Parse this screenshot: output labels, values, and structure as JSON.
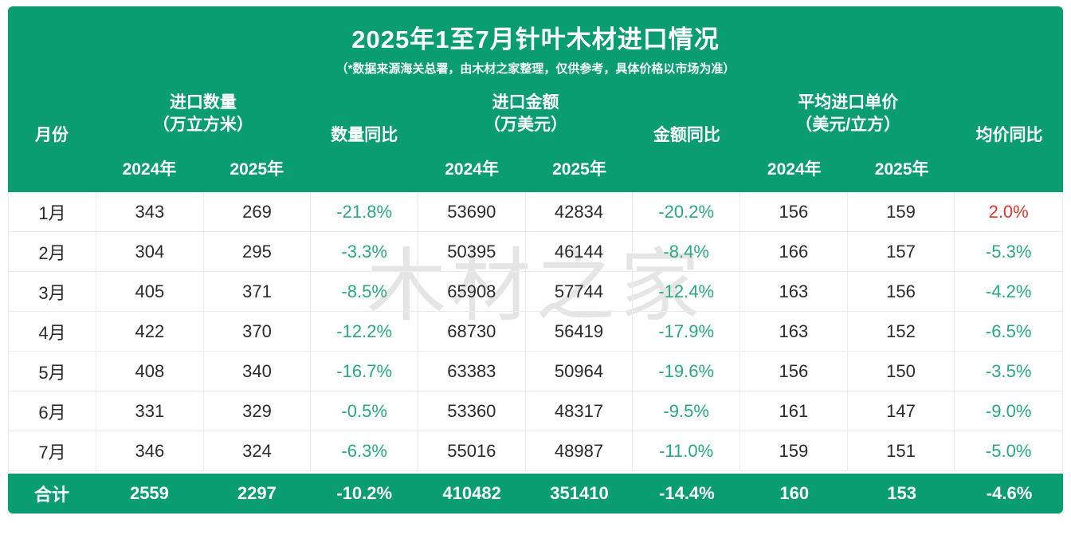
{
  "title": "2025年1至7月针叶木材进口情况",
  "subtitle": "（*数据来源海关总署，由木材之家整理，仅供参考，具体价格以市场为准）",
  "watermark": "木材之家",
  "colors": {
    "brand_green": "#0a9d71",
    "decline_green": "#2aa87c",
    "increase_red": "#d7382f",
    "body_text": "#2b2b2b",
    "grid_line": "#ececec"
  },
  "table": {
    "columns": {
      "month": "月份",
      "qty_group": "进口数量",
      "qty_unit": "（万立方米）",
      "qty_yoy": "数量同比",
      "amt_group": "进口金额",
      "amt_unit": "（万美元）",
      "amt_yoy": "金额同比",
      "price_group": "平均进口单价",
      "price_unit": "（美元/立方）",
      "price_yoy": "均价同比",
      "year_2024": "2024年",
      "year_2025": "2025年"
    },
    "rows": [
      {
        "month": "1月",
        "qty_2024": "343",
        "qty_2025": "269",
        "qty_yoy": "-21.8%",
        "amt_2024": "53690",
        "amt_2025": "42834",
        "amt_yoy": "-20.2%",
        "price_2024": "156",
        "price_2025": "159",
        "price_yoy": "2.0%"
      },
      {
        "month": "2月",
        "qty_2024": "304",
        "qty_2025": "295",
        "qty_yoy": "-3.3%",
        "amt_2024": "50395",
        "amt_2025": "46144",
        "amt_yoy": "-8.4%",
        "price_2024": "166",
        "price_2025": "157",
        "price_yoy": "-5.3%"
      },
      {
        "month": "3月",
        "qty_2024": "405",
        "qty_2025": "371",
        "qty_yoy": "-8.5%",
        "amt_2024": "65908",
        "amt_2025": "57744",
        "amt_yoy": "-12.4%",
        "price_2024": "163",
        "price_2025": "156",
        "price_yoy": "-4.2%"
      },
      {
        "month": "4月",
        "qty_2024": "422",
        "qty_2025": "370",
        "qty_yoy": "-12.2%",
        "amt_2024": "68730",
        "amt_2025": "56419",
        "amt_yoy": "-17.9%",
        "price_2024": "163",
        "price_2025": "152",
        "price_yoy": "-6.5%"
      },
      {
        "month": "5月",
        "qty_2024": "408",
        "qty_2025": "340",
        "qty_yoy": "-16.7%",
        "amt_2024": "63383",
        "amt_2025": "50964",
        "amt_yoy": "-19.6%",
        "price_2024": "156",
        "price_2025": "150",
        "price_yoy": "-3.5%"
      },
      {
        "month": "6月",
        "qty_2024": "331",
        "qty_2025": "329",
        "qty_yoy": "-0.5%",
        "amt_2024": "53360",
        "amt_2025": "48317",
        "amt_yoy": "-9.5%",
        "price_2024": "161",
        "price_2025": "147",
        "price_yoy": "-9.0%"
      },
      {
        "month": "7月",
        "qty_2024": "346",
        "qty_2025": "324",
        "qty_yoy": "-6.3%",
        "amt_2024": "55016",
        "amt_2025": "48987",
        "amt_yoy": "-11.0%",
        "price_2024": "159",
        "price_2025": "151",
        "price_yoy": "-5.0%"
      }
    ],
    "total": {
      "month": "合计",
      "qty_2024": "2559",
      "qty_2025": "2297",
      "qty_yoy": "-10.2%",
      "amt_2024": "410482",
      "amt_2025": "351410",
      "amt_yoy": "-14.4%",
      "price_2024": "160",
      "price_2025": "153",
      "price_yoy": "-4.6%"
    }
  },
  "chart_data": {
    "type": "table",
    "title": "2025年1至7月针叶木材进口情况",
    "subtitle": "（*数据来源海关总署，由木材之家整理，仅供参考，具体价格以市场为准）",
    "columns": [
      "月份",
      "进口数量2024年(万立方米)",
      "进口数量2025年(万立方米)",
      "数量同比",
      "进口金额2024年(万美元)",
      "进口金额2025年(万美元)",
      "金额同比",
      "平均进口单价2024年(美元/立方)",
      "平均进口单价2025年(美元/立方)",
      "均价同比"
    ],
    "rows": [
      [
        "1月",
        343,
        269,
        "-21.8%",
        53690,
        42834,
        "-20.2%",
        156,
        159,
        "2.0%"
      ],
      [
        "2月",
        304,
        295,
        "-3.3%",
        50395,
        46144,
        "-8.4%",
        166,
        157,
        "-5.3%"
      ],
      [
        "3月",
        405,
        371,
        "-8.5%",
        65908,
        57744,
        "-12.4%",
        163,
        156,
        "-4.2%"
      ],
      [
        "4月",
        422,
        370,
        "-12.2%",
        68730,
        56419,
        "-17.9%",
        163,
        152,
        "-6.5%"
      ],
      [
        "5月",
        408,
        340,
        "-16.7%",
        63383,
        50964,
        "-19.6%",
        156,
        150,
        "-3.5%"
      ],
      [
        "6月",
        331,
        329,
        "-0.5%",
        53360,
        48317,
        "-9.5%",
        161,
        147,
        "-9.0%"
      ],
      [
        "7月",
        346,
        324,
        "-6.3%",
        55016,
        48987,
        "-11.0%",
        159,
        151,
        "-5.0%"
      ],
      [
        "合计",
        2559,
        2297,
        "-10.2%",
        410482,
        351410,
        "-14.4%",
        160,
        153,
        "-4.6%"
      ]
    ]
  }
}
